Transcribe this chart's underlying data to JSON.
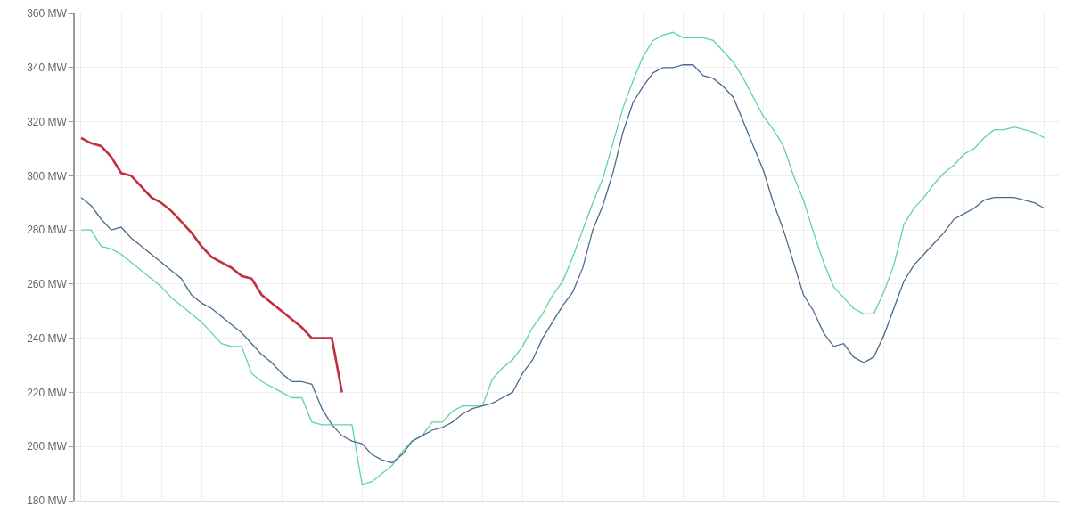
{
  "chart_data": {
    "type": "line",
    "categories": [
      null,
      null,
      null,
      null,
      null,
      null,
      null,
      null,
      null,
      null,
      null,
      null,
      null,
      null,
      null,
      null,
      null,
      null,
      null,
      null,
      null,
      null,
      null,
      null,
      null,
      null,
      null,
      null,
      null,
      null,
      null,
      null,
      null,
      null,
      null,
      null,
      null,
      null,
      null,
      null,
      null,
      null,
      null,
      null,
      null,
      null,
      null,
      null,
      null,
      null,
      null,
      null,
      null,
      null,
      null,
      null,
      null,
      null,
      null,
      null,
      null,
      null,
      null,
      null,
      null,
      null,
      null,
      null,
      null,
      null,
      null,
      null,
      null,
      null,
      null,
      null,
      null,
      null,
      null,
      null,
      null,
      null,
      null,
      null,
      null,
      null,
      null,
      null,
      null,
      null,
      null,
      null,
      null,
      null,
      null,
      null,
      null
    ],
    "series": [
      {
        "color": "#5fd3a4",
        "values": [
          280,
          280,
          274,
          273,
          271,
          268,
          265,
          262,
          259,
          255,
          252,
          249,
          246,
          242,
          238,
          237,
          237,
          227,
          224,
          222,
          220,
          218,
          218,
          209,
          208,
          208,
          208,
          208,
          186,
          187,
          190,
          193,
          198,
          202,
          204,
          209,
          209,
          213,
          215,
          215,
          215,
          225,
          229,
          232,
          237,
          244,
          249,
          256,
          261,
          270,
          280,
          290,
          299,
          312,
          325,
          335,
          344,
          350,
          352,
          353,
          351,
          351,
          351,
          350,
          346,
          342,
          336,
          329,
          322,
          317,
          311,
          300,
          291,
          279,
          268,
          259,
          255,
          251,
          249,
          249,
          257,
          267,
          282,
          288,
          292,
          297,
          301,
          304,
          308,
          310,
          314,
          317,
          317,
          318,
          317,
          316,
          314
        ]
      },
      {
        "color": "#4a6a8f",
        "values": [
          292,
          289,
          284,
          280,
          281,
          277,
          274,
          271,
          268,
          265,
          262,
          256,
          253,
          251,
          248,
          245,
          242,
          238,
          234,
          231,
          227,
          224,
          224,
          223,
          214,
          208,
          204,
          202,
          201,
          197,
          195,
          194,
          197,
          202,
          204,
          206,
          207,
          209,
          212,
          214,
          215,
          216,
          218,
          220,
          227,
          232,
          240,
          246,
          252,
          257,
          266,
          280,
          289,
          301,
          316,
          327,
          333,
          338,
          340,
          340,
          341,
          341,
          337,
          336,
          333,
          329,
          320,
          311,
          302,
          290,
          280,
          268,
          256,
          250,
          242,
          237,
          238,
          233,
          231,
          233,
          241,
          251,
          261,
          267,
          271,
          275,
          279,
          284,
          286,
          288,
          291,
          292,
          292,
          292,
          291,
          290,
          288
        ]
      },
      {
        "color": "#c23040",
        "values": [
          314,
          312,
          311,
          307,
          301,
          300,
          296,
          292,
          290,
          287,
          283,
          279,
          274,
          270,
          268,
          266,
          263,
          262,
          256,
          253,
          250,
          247,
          244,
          240,
          240,
          240,
          220,
          null,
          null,
          null,
          null,
          null,
          null,
          null,
          null,
          null,
          null,
          null,
          null,
          null,
          null,
          null,
          null,
          null,
          null,
          null,
          null,
          null,
          null,
          null,
          null,
          null,
          null,
          null,
          null,
          null,
          null,
          null,
          null,
          null,
          null,
          null,
          null,
          null,
          null,
          null,
          null,
          null,
          null,
          null,
          null,
          null,
          null,
          null,
          null,
          null,
          null,
          null,
          null,
          null,
          null,
          null,
          null,
          null,
          null,
          null,
          null,
          null,
          null,
          null,
          null,
          null,
          null,
          null,
          null,
          null,
          null
        ]
      }
    ],
    "ylim": [
      180,
      360
    ],
    "yticks": [
      {
        "value": 180,
        "label": "180 MW"
      },
      {
        "value": 200,
        "label": "200 MW"
      },
      {
        "value": 220,
        "label": "220 MW"
      },
      {
        "value": 240,
        "label": "240 MW"
      },
      {
        "value": 260,
        "label": "260 MW"
      },
      {
        "value": 280,
        "label": "280 MW"
      },
      {
        "value": 300,
        "label": "300 MW"
      },
      {
        "value": 320,
        "label": "320 MW"
      },
      {
        "value": 340,
        "label": "340 MW"
      },
      {
        "value": 360,
        "label": "360 MW"
      }
    ],
    "grid": true,
    "tick_labels": "y",
    "marker": "none",
    "line_style": "solid"
  }
}
